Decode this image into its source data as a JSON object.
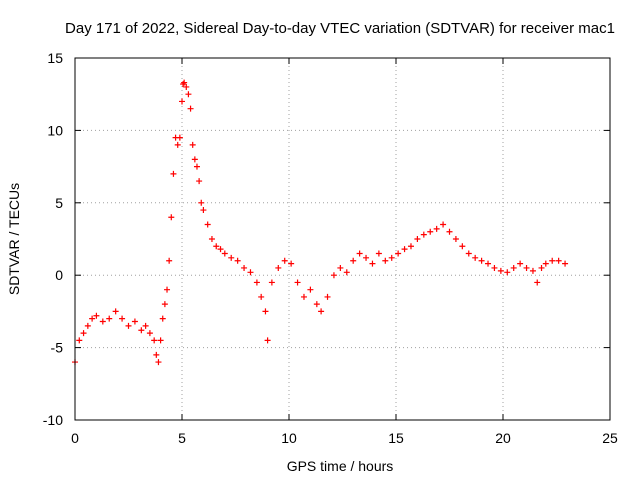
{
  "chart_data": {
    "type": "scatter",
    "title": "Day 171 of 2022, Sidereal Day-to-day VTEC variation (SDTVAR) for receiver mac1",
    "xlabel": "GPS time / hours",
    "ylabel": "SDTVAR / TECUs",
    "xlim": [
      0,
      25
    ],
    "ylim": [
      -10,
      15
    ],
    "xticks": [
      0,
      5,
      10,
      15,
      20,
      25
    ],
    "yticks": [
      -10,
      -5,
      0,
      5,
      10,
      15
    ],
    "xtick_labels": [
      "0",
      "5",
      "10",
      "15",
      "20",
      "25"
    ],
    "ytick_labels": [
      "-10",
      "-5",
      "0",
      "5",
      "10",
      "15"
    ],
    "grid": true,
    "marker": "+",
    "series": [
      {
        "name": "mac1",
        "color": "#ff0000",
        "x": [
          0.0,
          0.2,
          0.4,
          0.6,
          0.8,
          1.0,
          1.3,
          1.6,
          1.9,
          2.2,
          2.5,
          2.8,
          3.1,
          3.3,
          3.5,
          3.7,
          3.8,
          3.9,
          4.0,
          4.1,
          4.2,
          4.3,
          4.4,
          4.5,
          4.6,
          4.7,
          4.8,
          4.9,
          5.0,
          5.05,
          5.1,
          5.2,
          5.3,
          5.4,
          5.5,
          5.6,
          5.7,
          5.8,
          5.9,
          6.0,
          6.2,
          6.4,
          6.6,
          6.8,
          7.0,
          7.3,
          7.6,
          7.9,
          8.2,
          8.5,
          8.7,
          8.9,
          9.0,
          9.2,
          9.5,
          9.8,
          10.1,
          10.4,
          10.7,
          11.0,
          11.3,
          11.5,
          11.8,
          12.1,
          12.4,
          12.7,
          13.0,
          13.3,
          13.6,
          13.9,
          14.2,
          14.5,
          14.8,
          15.1,
          15.4,
          15.7,
          16.0,
          16.3,
          16.6,
          16.9,
          17.2,
          17.5,
          17.8,
          18.1,
          18.4,
          18.7,
          19.0,
          19.3,
          19.6,
          19.9,
          20.2,
          20.5,
          20.8,
          21.1,
          21.4,
          21.6,
          21.8,
          22.0,
          22.3,
          22.6,
          22.9
        ],
        "y": [
          -6.0,
          -4.5,
          -4.0,
          -3.5,
          -3.0,
          -2.8,
          -3.2,
          -3.0,
          -2.5,
          -3.0,
          -3.5,
          -3.2,
          -3.8,
          -3.5,
          -4.0,
          -4.5,
          -5.5,
          -6.0,
          -4.5,
          -3.0,
          -2.0,
          -1.0,
          1.0,
          4.0,
          7.0,
          9.5,
          9.0,
          9.5,
          12.0,
          13.2,
          13.3,
          13.0,
          12.5,
          11.5,
          9.0,
          8.0,
          7.5,
          6.5,
          5.0,
          4.5,
          3.5,
          2.5,
          2.0,
          1.8,
          1.5,
          1.2,
          1.0,
          0.5,
          0.2,
          -0.5,
          -1.5,
          -2.5,
          -4.5,
          -0.5,
          0.5,
          1.0,
          0.8,
          -0.5,
          -1.5,
          -1.0,
          -2.0,
          -2.5,
          -1.5,
          0.0,
          0.5,
          0.2,
          1.0,
          1.5,
          1.2,
          0.8,
          1.5,
          1.0,
          1.2,
          1.5,
          1.8,
          2.0,
          2.5,
          2.8,
          3.0,
          3.2,
          3.5,
          3.0,
          2.5,
          2.0,
          1.5,
          1.2,
          1.0,
          0.8,
          0.5,
          0.3,
          0.2,
          0.5,
          0.8,
          0.5,
          0.3,
          -0.5,
          0.5,
          0.8,
          1.0,
          1.0,
          0.8
        ]
      }
    ]
  }
}
